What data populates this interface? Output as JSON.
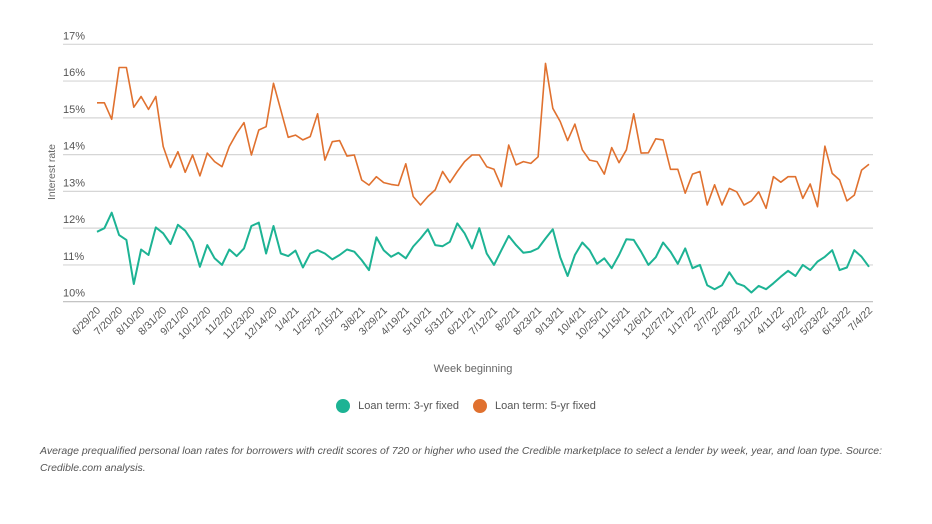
{
  "chart_data": {
    "type": "line",
    "xlabel": "Week beginning",
    "ylabel": "Interest rate",
    "ylim": [
      10,
      17
    ],
    "y_ticks": [
      "10%",
      "11%",
      "12%",
      "13%",
      "14%",
      "15%",
      "16%",
      "17%"
    ],
    "grid": true,
    "legend_position": "bottom",
    "x_tick_labels": [
      "6/29/20",
      "7/20/20",
      "8/10/20",
      "8/31/20",
      "9/21/20",
      "10/12/20",
      "11/2/20",
      "11/23/20",
      "12/14/20",
      "1/4/21",
      "1/25/21",
      "2/15/21",
      "3/8/21",
      "3/29/21",
      "4/19/21",
      "5/10/21",
      "5/31/21",
      "6/21/21",
      "7/12/21",
      "8/2/21",
      "8/23/21",
      "9/13/21",
      "10/4/21",
      "10/25/21",
      "11/15/21",
      "12/6/21",
      "12/27/21",
      "1/17/22",
      "2/7/22",
      "2/28/22",
      "3/21/22",
      "4/11/22",
      "5/2/22",
      "5/23/22",
      "6/13/22",
      "7/4/22"
    ],
    "series": [
      {
        "name": "Loan term: 3-yr fixed",
        "color": "#1db394",
        "values": [
          11.9,
          12.0,
          12.42,
          11.81,
          11.68,
          10.48,
          11.42,
          11.27,
          12.02,
          11.86,
          11.57,
          12.09,
          11.93,
          11.63,
          10.95,
          11.54,
          11.18,
          11.0,
          11.42,
          11.24,
          11.45,
          12.06,
          12.15,
          11.31,
          12.06,
          11.31,
          11.24,
          11.39,
          10.93,
          11.31,
          11.4,
          11.31,
          11.15,
          11.27,
          11.42,
          11.36,
          11.13,
          10.86,
          11.75,
          11.4,
          11.22,
          11.33,
          11.18,
          11.5,
          11.72,
          11.97,
          11.54,
          11.51,
          11.63,
          12.13,
          11.86,
          11.45,
          12.0,
          11.31,
          11.0,
          11.4,
          11.79,
          11.54,
          11.33,
          11.36,
          11.45,
          11.72,
          11.97,
          11.21,
          10.7,
          11.27,
          11.61,
          11.4,
          11.03,
          11.18,
          10.91,
          11.27,
          11.7,
          11.68,
          11.36,
          11.0,
          11.21,
          11.61,
          11.36,
          11.03,
          11.45,
          10.91,
          11.0,
          10.45,
          10.34,
          10.45,
          10.8,
          10.5,
          10.43,
          10.25,
          10.43,
          10.34,
          10.5,
          10.68,
          10.84,
          10.7,
          11.0,
          10.86,
          11.09,
          11.22,
          11.4,
          10.86,
          10.93,
          11.4,
          11.22,
          10.95
        ]
      },
      {
        "name": "Loan term: 5-yr fixed",
        "color": "#e0712f",
        "values": [
          15.41,
          15.41,
          14.96,
          16.37,
          16.37,
          15.29,
          15.58,
          15.23,
          15.58,
          14.22,
          13.65,
          14.08,
          13.52,
          13.99,
          13.42,
          14.04,
          13.81,
          13.67,
          14.22,
          14.58,
          14.87,
          13.99,
          14.67,
          14.76,
          15.94,
          15.21,
          14.47,
          14.53,
          14.4,
          14.49,
          15.11,
          13.85,
          14.35,
          14.38,
          13.96,
          13.99,
          13.31,
          13.17,
          13.4,
          13.24,
          13.19,
          13.16,
          13.75,
          12.86,
          12.63,
          12.86,
          13.04,
          13.54,
          13.24,
          13.54,
          13.81,
          13.99,
          13.99,
          13.67,
          13.6,
          13.13,
          14.26,
          13.72,
          13.81,
          13.76,
          13.94,
          16.48,
          15.26,
          14.9,
          14.38,
          14.83,
          14.13,
          13.85,
          13.81,
          13.47,
          14.19,
          13.78,
          14.13,
          15.11,
          14.04,
          14.05,
          14.43,
          14.4,
          13.6,
          13.6,
          12.95,
          13.47,
          13.54,
          12.63,
          13.18,
          12.63,
          13.08,
          12.99,
          12.63,
          12.74,
          12.99,
          12.54,
          13.4,
          13.25,
          13.4,
          13.4,
          12.81,
          13.2,
          12.58,
          14.23,
          13.49,
          13.31,
          12.74,
          12.9,
          13.58,
          13.74
        ]
      }
    ]
  },
  "caption": "Average prequalified personal loan rates for borrowers with credit scores of 720 or higher who used the Credible marketplace to select a lender by week, year, and loan type. Source: Credible.com analysis."
}
